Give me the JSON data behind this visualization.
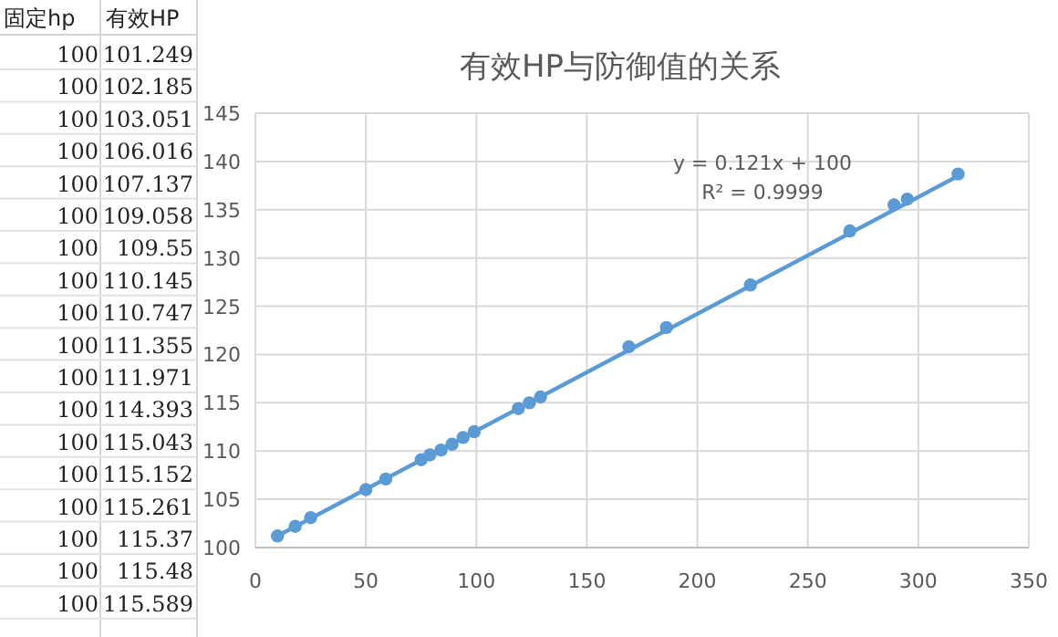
{
  "chart_data": [
    {
      "type": "other",
      "categories": [
        "固定hp",
        "有效HP"
      ],
      "annotations": [
        "100",
        "101.249",
        "100",
        "102.185",
        "100",
        "103.051",
        "100",
        "106.016",
        "100",
        "107.137",
        "100",
        "109.058",
        "100",
        "109.55",
        "100",
        "110.145",
        "100",
        "110.747",
        "100",
        "111.355",
        "100",
        "111.971",
        "100",
        "114.393",
        "100",
        "115.043",
        "100",
        "115.152",
        "100",
        "115.261",
        "100",
        "115.37",
        "100",
        "115.48",
        "100",
        "115.589"
      ]
    },
    {
      "type": "scatter",
      "title": "有效HP与防御值的关系",
      "marker": "circle",
      "grid": true,
      "xlim": [
        0,
        350
      ],
      "xticks": [
        0,
        50,
        100,
        150,
        200,
        250,
        300,
        350
      ],
      "ylim": [
        100,
        145
      ],
      "yticks": [
        100,
        105,
        110,
        115,
        120,
        125,
        130,
        135,
        140,
        145
      ],
      "annotations": [
        "y = 0.121x + 100",
        "R² = 0.9999"
      ],
      "series": [
        {
          "type": "scatter",
          "color": "#5b9bd5",
          "x": [
            10,
            18,
            25,
            50,
            59,
            75,
            79,
            84,
            89,
            94,
            99,
            119,
            124,
            129,
            169,
            186,
            224,
            269,
            289,
            295,
            318
          ],
          "values": [
            101.2,
            102.2,
            103.1,
            106,
            107.1,
            109.1,
            109.6,
            110.1,
            110.7,
            111.4,
            112,
            114.4,
            115,
            115.6,
            120.8,
            122.8,
            127.2,
            132.8,
            135.5,
            136.1,
            138.7
          ]
        },
        {
          "type": "line",
          "marker": "none",
          "color": "#5b9bd5",
          "x": [
            10,
            318
          ],
          "values": [
            101.2,
            138.5
          ]
        }
      ]
    }
  ]
}
